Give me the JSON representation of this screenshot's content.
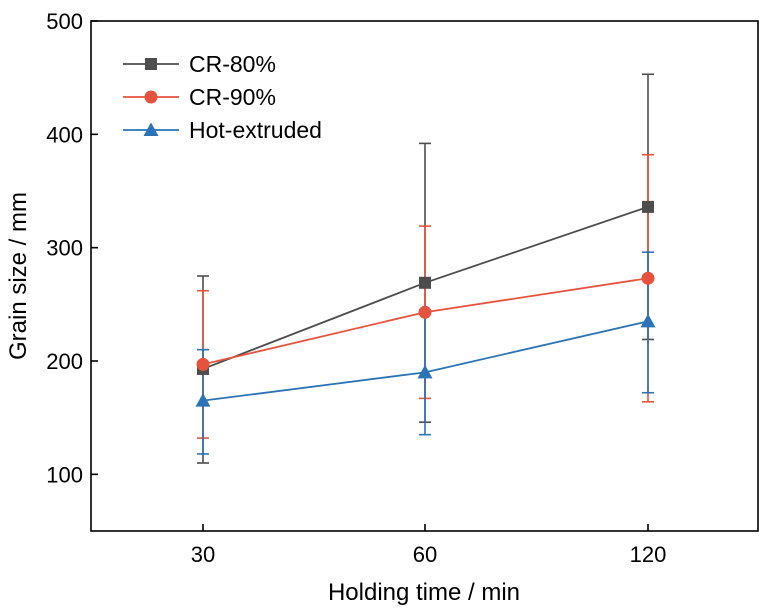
{
  "chart_data": {
    "type": "line",
    "xlabel": "Holding time / min",
    "ylabel": "Grain size / mm",
    "categories": [
      "30",
      "60",
      "120"
    ],
    "ylim": [
      50,
      500
    ],
    "yticks": [
      100,
      200,
      300,
      400,
      500
    ],
    "grid": false,
    "legend_position": "top-left",
    "series": [
      {
        "name": "CR-80%",
        "color": "#4d4d4d",
        "marker": "square",
        "values": [
          193,
          269,
          336
        ],
        "error_low": [
          110,
          146,
          219
        ],
        "error_high": [
          275,
          392,
          453
        ]
      },
      {
        "name": "CR-90%",
        "color": "#e5533f",
        "marker": "circle",
        "values": [
          197,
          243,
          273
        ],
        "error_low": [
          132,
          167,
          164
        ],
        "error_high": [
          262,
          319,
          382
        ]
      },
      {
        "name": "Hot-extruded",
        "color": "#2c73b5",
        "marker": "triangle",
        "values": [
          165,
          190,
          235
        ],
        "error_low": [
          118,
          135,
          172
        ],
        "error_high": [
          210,
          245,
          296
        ]
      }
    ]
  }
}
